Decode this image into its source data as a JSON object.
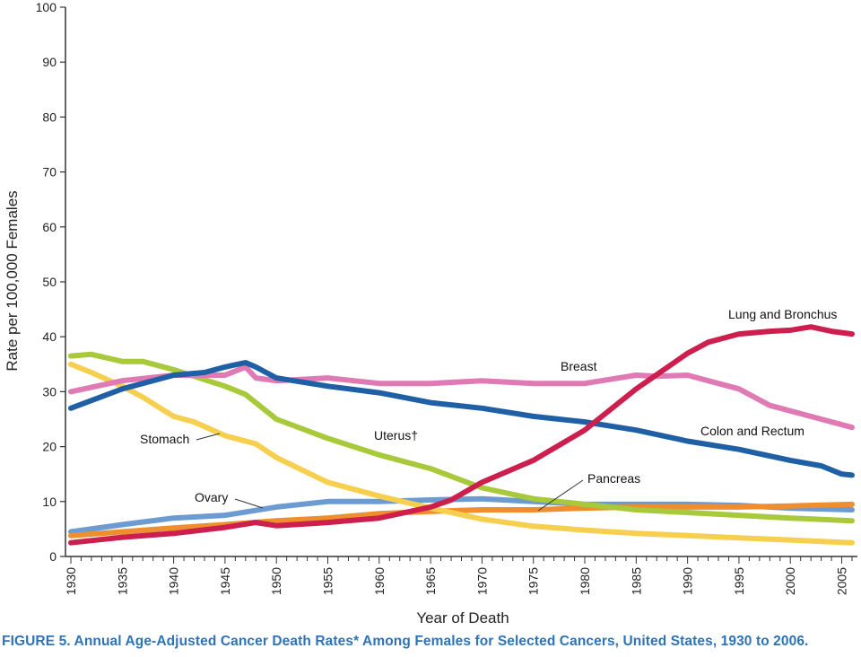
{
  "caption": "FIGURE 5. Annual Age-Adjusted Cancer Death Rates* Among Females for Selected Cancers, United States, 1930 to 2006.",
  "colors": {
    "lung": "#cc1f4e",
    "breast": "#e07ab4",
    "colon": "#1f5fa5",
    "uterus": "#a7c93a",
    "stomach": "#f6cf4e",
    "ovary": "#6c9bd2",
    "pancreas": "#ef8e2f",
    "axis": "#333333"
  },
  "chart_data": {
    "type": "line",
    "xlabel": "Year of Death",
    "ylabel": "Rate per 100,000 Females",
    "xlim": [
      1930,
      2006
    ],
    "ylim": [
      0,
      100
    ],
    "yticks": [
      0,
      10,
      20,
      30,
      40,
      50,
      60,
      70,
      80,
      90,
      100
    ],
    "xticks_labeled": [
      1930,
      1935,
      1940,
      1945,
      1950,
      1955,
      1960,
      1965,
      1970,
      1975,
      1980,
      1985,
      1990,
      1995,
      2000,
      2005
    ],
    "grid": false,
    "series": [
      {
        "name": "Lung and Bronchus",
        "color_key": "lung",
        "x": [
          1930,
          1935,
          1940,
          1945,
          1948,
          1950,
          1955,
          1960,
          1965,
          1967,
          1970,
          1975,
          1980,
          1985,
          1990,
          1992,
          1995,
          1998,
          2000,
          2002,
          2004,
          2006
        ],
        "y": [
          2.5,
          3.5,
          4.2,
          5.3,
          6.2,
          5.6,
          6.2,
          7.0,
          9.0,
          10.3,
          13.5,
          17.5,
          23.0,
          30.5,
          37.0,
          39.0,
          40.5,
          41.0,
          41.2,
          41.8,
          41.0,
          40.5
        ]
      },
      {
        "name": "Breast",
        "color_key": "breast",
        "x": [
          1930,
          1935,
          1940,
          1945,
          1947,
          1948,
          1950,
          1955,
          1960,
          1965,
          1970,
          1975,
          1980,
          1985,
          1987,
          1990,
          1992,
          1995,
          1998,
          2000,
          2003,
          2006
        ],
        "y": [
          30.0,
          32.0,
          33.0,
          33.0,
          34.5,
          32.5,
          32.0,
          32.5,
          31.5,
          31.5,
          32.0,
          31.5,
          31.5,
          33.0,
          32.8,
          33.0,
          32.0,
          30.5,
          27.5,
          26.5,
          25.0,
          23.5
        ]
      },
      {
        "name": "Colon and Rectum",
        "color_key": "colon",
        "x": [
          1930,
          1935,
          1940,
          1943,
          1945,
          1947,
          1948,
          1950,
          1955,
          1960,
          1965,
          1970,
          1975,
          1980,
          1985,
          1990,
          1995,
          2000,
          2003,
          2005,
          2006
        ],
        "y": [
          27.0,
          30.5,
          33.0,
          33.5,
          34.5,
          35.3,
          34.5,
          32.5,
          31.0,
          29.8,
          28.0,
          27.0,
          25.5,
          24.5,
          23.0,
          21.0,
          19.5,
          17.5,
          16.5,
          15.0,
          14.8
        ]
      },
      {
        "name": "Uterus†",
        "color_key": "uterus",
        "x": [
          1930,
          1932,
          1935,
          1937,
          1940,
          1945,
          1947,
          1950,
          1955,
          1960,
          1965,
          1970,
          1975,
          1980,
          1985,
          1990,
          1995,
          2000,
          2006
        ],
        "y": [
          36.5,
          36.8,
          35.5,
          35.5,
          34.0,
          31.0,
          29.5,
          25.0,
          21.5,
          18.5,
          16.0,
          12.5,
          10.5,
          9.5,
          8.5,
          8.0,
          7.5,
          7.0,
          6.5
        ]
      },
      {
        "name": "Stomach",
        "color_key": "stomach",
        "x": [
          1930,
          1932,
          1935,
          1937,
          1940,
          1942,
          1945,
          1948,
          1950,
          1955,
          1960,
          1965,
          1970,
          1975,
          1980,
          1985,
          1990,
          1995,
          2000,
          2006
        ],
        "y": [
          35.0,
          33.5,
          31.0,
          29.0,
          25.5,
          24.5,
          22.0,
          20.5,
          18.0,
          13.5,
          11.0,
          8.8,
          6.8,
          5.5,
          4.8,
          4.2,
          3.8,
          3.4,
          3.0,
          2.5
        ]
      },
      {
        "name": "Ovary",
        "color_key": "ovary",
        "x": [
          1930,
          1935,
          1940,
          1945,
          1950,
          1955,
          1960,
          1965,
          1970,
          1975,
          1980,
          1985,
          1990,
          1995,
          2000,
          2006
        ],
        "y": [
          4.5,
          5.8,
          7.0,
          7.5,
          9.0,
          10.0,
          10.0,
          10.3,
          10.5,
          10.0,
          9.5,
          9.5,
          9.5,
          9.3,
          8.8,
          8.5
        ]
      },
      {
        "name": "Pancreas",
        "color_key": "pancreas",
        "x": [
          1930,
          1935,
          1940,
          1945,
          1950,
          1955,
          1960,
          1965,
          1970,
          1975,
          1980,
          1985,
          1990,
          1995,
          2000,
          2006
        ],
        "y": [
          3.8,
          4.5,
          5.2,
          5.8,
          6.5,
          7.0,
          7.8,
          8.2,
          8.5,
          8.5,
          8.8,
          9.0,
          9.0,
          9.0,
          9.2,
          9.5
        ]
      }
    ],
    "labels": [
      {
        "text": "Lung and Bronchus",
        "series": "Lung and Bronchus"
      },
      {
        "text": "Breast",
        "series": "Breast"
      },
      {
        "text": "Colon and Rectum",
        "series": "Colon and Rectum"
      },
      {
        "text": "Uterus†",
        "series": "Uterus†"
      },
      {
        "text": "Stomach",
        "series": "Stomach"
      },
      {
        "text": "Ovary",
        "series": "Ovary"
      },
      {
        "text": "Pancreas",
        "series": "Pancreas"
      }
    ]
  }
}
